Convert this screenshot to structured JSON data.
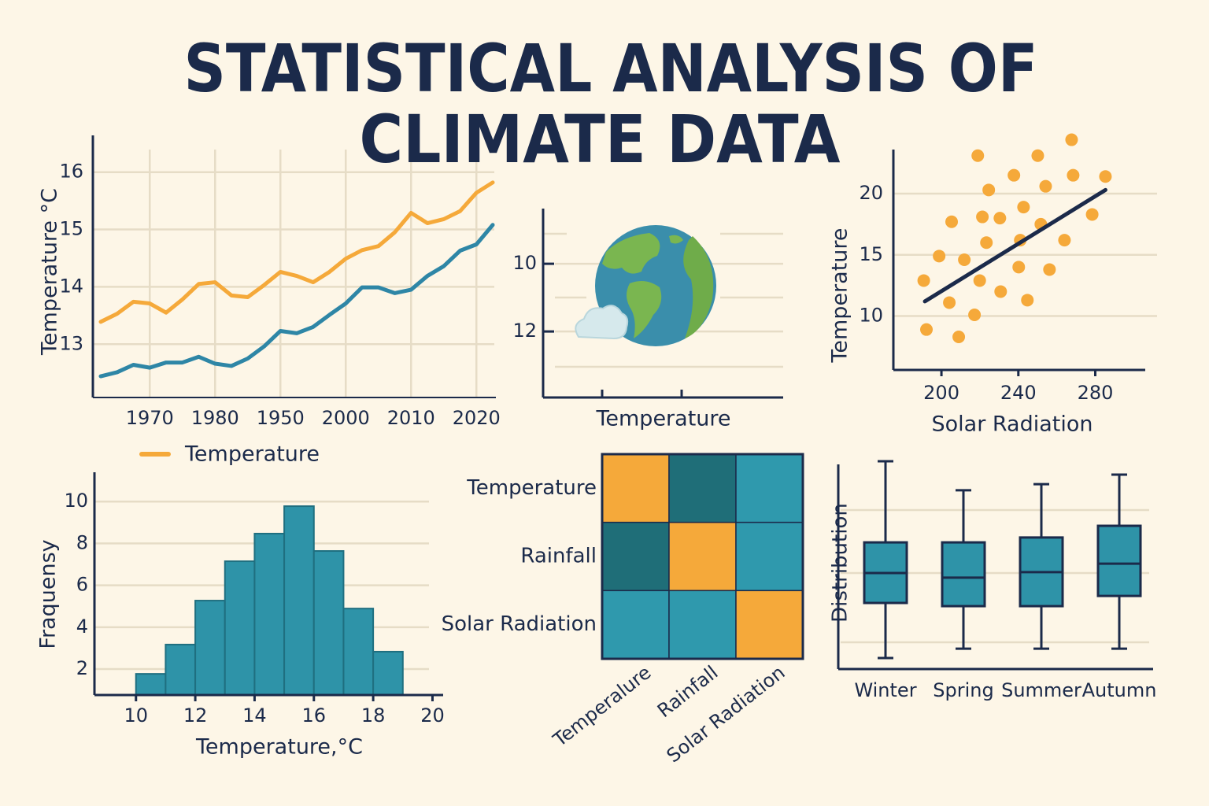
{
  "title": [
    "STATISTICAL ANALYSIS OF",
    "CLIMATE DATA"
  ],
  "chart_data": [
    {
      "type": "line",
      "ylabel": "Temperature °C",
      "categories": [
        null,
        null,
        null,
        "1970",
        null,
        null,
        null,
        "1980",
        null,
        null,
        null,
        "1950",
        null,
        null,
        null,
        "2000",
        null,
        null,
        null,
        "2010",
        null,
        null,
        null,
        "2020",
        null
      ],
      "series": [
        {
          "name": "Temperature",
          "color": "#f5a93a",
          "values": [
            13.39,
            13.53,
            13.74,
            13.71,
            13.55,
            13.78,
            14.05,
            14.08,
            13.85,
            13.82,
            14.03,
            14.26,
            14.19,
            14.08,
            14.26,
            14.49,
            14.64,
            14.71,
            14.95,
            15.29,
            15.11,
            15.18,
            15.32,
            15.64,
            15.82
          ]
        },
        {
          "color": "#2e86a6",
          "values": [
            12.44,
            12.51,
            12.64,
            12.59,
            12.68,
            12.68,
            12.78,
            12.66,
            12.62,
            12.75,
            12.96,
            13.23,
            13.19,
            13.3,
            13.51,
            13.71,
            13.99,
            13.99,
            13.89,
            13.95,
            14.19,
            14.36,
            14.63,
            14.74,
            15.08
          ]
        }
      ],
      "ylim": [
        12.07,
        16.6
      ],
      "yticks": [
        13,
        14,
        15,
        16
      ],
      "grid": true,
      "legend": "bottom"
    },
    {
      "type": "illustration",
      "xlabel": "Temperature",
      "ylim": [
        8.37,
        13.95
      ],
      "y_inverted": true,
      "yticks": [
        10,
        12
      ],
      "grid": true
    },
    {
      "type": "scatter",
      "xlabel": "Solar Radiation",
      "ylabel": "Temperature",
      "color": "#f5a93a",
      "x": [
        218.9,
        267.7,
        250.1,
        237.7,
        268.5,
        285.3,
        224.6,
        254.2,
        205.3,
        221.3,
        230.4,
        242.7,
        251.7,
        278.4,
        198.8,
        211.9,
        223.4,
        241.0,
        264.0,
        190.8,
        219.9,
        240.2,
        256.2,
        204.1,
        230.8,
        244.7,
        217.2,
        192.2,
        209.0
      ],
      "y": [
        23.1,
        24.4,
        23.1,
        21.5,
        21.5,
        21.4,
        20.3,
        20.6,
        17.7,
        18.1,
        18.0,
        18.9,
        17.5,
        18.3,
        14.9,
        14.6,
        16.0,
        16.2,
        16.2,
        12.9,
        12.9,
        14.0,
        13.8,
        11.1,
        12.0,
        11.3,
        10.1,
        8.9,
        8.3
      ],
      "trendline": {
        "color": "#1b2a4a",
        "x": [
          191.4,
          285.3
        ],
        "y": [
          11.2,
          20.3
        ]
      },
      "xlim": [
        175,
        306
      ],
      "ylim": [
        5.6,
        23.6
      ],
      "xticks": [
        200,
        240,
        280
      ],
      "yticks": [
        10,
        15,
        20
      ],
      "grid": true
    },
    {
      "type": "histogram",
      "xlabel": "Temperature,°C",
      "ylabel": "Fraquensy",
      "color": "#2e93a8",
      "bins": [
        10,
        11,
        12,
        13,
        14,
        15,
        16,
        17,
        18,
        19
      ],
      "counts": [
        1.77,
        3.17,
        5.27,
        7.15,
        8.47,
        9.78,
        7.64,
        4.89,
        2.83
      ],
      "xlim": [
        8.6,
        20.2
      ],
      "ylim": [
        0.76,
        11.4
      ],
      "xticks": [
        10,
        12,
        14,
        16,
        18,
        20
      ],
      "yticks": [
        2,
        4,
        6,
        8,
        10
      ],
      "grid": true
    },
    {
      "type": "heatmap",
      "rows": [
        "Temperature",
        "Rainfall",
        "Solar Radiation"
      ],
      "columns": [
        "Temperalure",
        "Rainfall",
        "Solar Radiation"
      ],
      "cell_colors": [
        [
          "#f5a93a",
          "#1f6e78",
          "#2f99ad"
        ],
        [
          "#1f6e78",
          "#f5a93a",
          "#2f99ad"
        ],
        [
          "#2f99ad",
          "#2f99ad",
          "#f5a93a"
        ]
      ]
    },
    {
      "type": "box",
      "ylabel": "Distribution",
      "color": "#2e93a8",
      "categories": [
        "Winter",
        "Spring",
        "Summer",
        "Autumn"
      ],
      "boxes": [
        {
          "min": 0.52,
          "q1": 3.11,
          "median": 4.52,
          "q3": 5.96,
          "max": 9.78
        },
        {
          "min": 0.96,
          "q1": 2.96,
          "median": 4.3,
          "q3": 5.96,
          "max": 8.41
        },
        {
          "min": 0.96,
          "q1": 2.96,
          "median": 4.56,
          "q3": 6.19,
          "max": 8.7
        },
        {
          "min": 0.96,
          "q1": 3.44,
          "median": 4.96,
          "q3": 6.74,
          "max": 9.15
        }
      ],
      "ylim": [
        0,
        10
      ]
    }
  ]
}
